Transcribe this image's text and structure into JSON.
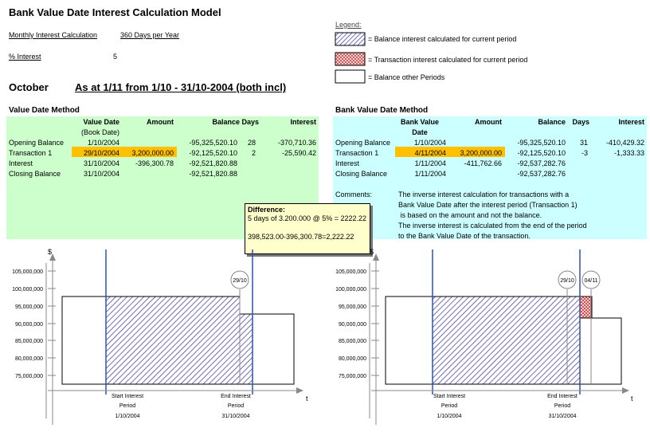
{
  "title": "Bank Value Date Interest Calculation Model",
  "monthly_label": "Monthly Interest Calculation",
  "days_per_year": "360 Days per Year",
  "pct_label": "% Interest",
  "pct_value": "5",
  "month": "October",
  "as_at": "As at 1/11 from 1/10 - 31/10-2004 (both incl)",
  "legend": {
    "title": "Legend:",
    "items": [
      {
        "label": "= Balance interest calculated for current period",
        "pattern": "hatch-blue"
      },
      {
        "label": "= Transaction interest calculated for current period",
        "pattern": "hatch-red"
      },
      {
        "label": "= Balance other Periods",
        "pattern": "plain"
      }
    ]
  },
  "left": {
    "title": "Value Date Method",
    "bg": "#ccffcc",
    "headers": {
      "date": "Value Date",
      "date_sub": "(Book Date)",
      "amount": "Amount",
      "balance": "Balance Days",
      "interest": "Interest"
    },
    "rows": [
      {
        "label": "Opening Balance",
        "date": "1/10/2004",
        "amount": "",
        "balance": "-95,325,520.10",
        "days": "28",
        "interest": "-370,710.36"
      },
      {
        "label": "Transaction 1",
        "date": "29/10/2004",
        "amount": "3,200,000.00",
        "balance": "-92,125,520.10",
        "days": "2",
        "interest": "-25,590.42"
      },
      {
        "label": "Interest",
        "date": "31/10/2004",
        "amount": "-396,300.78",
        "balance": "-92,521,820.88",
        "days": "",
        "interest": ""
      },
      {
        "label": "Closing Balance",
        "date": "31/10/2004",
        "amount": "",
        "balance": "-92,521,820.88",
        "days": "",
        "interest": ""
      }
    ]
  },
  "right": {
    "title": "Bank Value Date Method",
    "bg": "#ccffff",
    "headers": {
      "date": "Bank Value",
      "date_sub": "Date",
      "amount": "Amount",
      "balance": "Balance",
      "days": "Days",
      "interest": "Interest"
    },
    "rows": [
      {
        "label": "Opening Balance",
        "date": "1/10/2004",
        "amount": "",
        "balance": "-95,325,520.10",
        "days": "31",
        "interest": "-410,429.32"
      },
      {
        "label": "Transaction 1",
        "date": "4/11/2004",
        "amount": "3,200,000.00",
        "balance": "-92,125,520.10",
        "days": "-3",
        "interest": "-1,333.33"
      },
      {
        "label": "Interest",
        "date": "1/11/2004",
        "amount": "-411,762.66",
        "balance": "-92,537,282.76",
        "days": "",
        "interest": ""
      },
      {
        "label": "Closing Balance",
        "date": "1/11/2004",
        "amount": "",
        "balance": "-92,537,282.76",
        "days": "",
        "interest": ""
      }
    ],
    "comments_label": "Comments:",
    "comments": [
      "The inverse interest calculation for transactions with a",
      "Bank Value Date after the interest period (Transaction 1)",
      " is based on the amount and not the balance.",
      "The inverse interest is calculated from the end of the period",
      "to the Bank Value Date of the transaction."
    ]
  },
  "highlight_color": "#ffc000",
  "callout": {
    "title": "Difference:",
    "line1": "5 days of 3.200.000 @ 5% = 2222.22",
    "line2": "398,523.00-396,300.78=2,222.22"
  },
  "charts": {
    "y_ticks": [
      "105,000,000",
      "100,000,000",
      "95,000,000",
      "90,000,000",
      "85,000,000",
      "80,000,000",
      "75,000,000"
    ],
    "y_unit": "$",
    "x_unit": "t",
    "start_label1": "Start Interest",
    "start_label2": "Period",
    "start_date": "1/10/2004",
    "end_label1": "End Interest",
    "end_label2": "Period",
    "end_date": "31/10/2004",
    "left_marker": "29/10",
    "right_marker1": "29/10",
    "right_marker2": "04/11"
  }
}
